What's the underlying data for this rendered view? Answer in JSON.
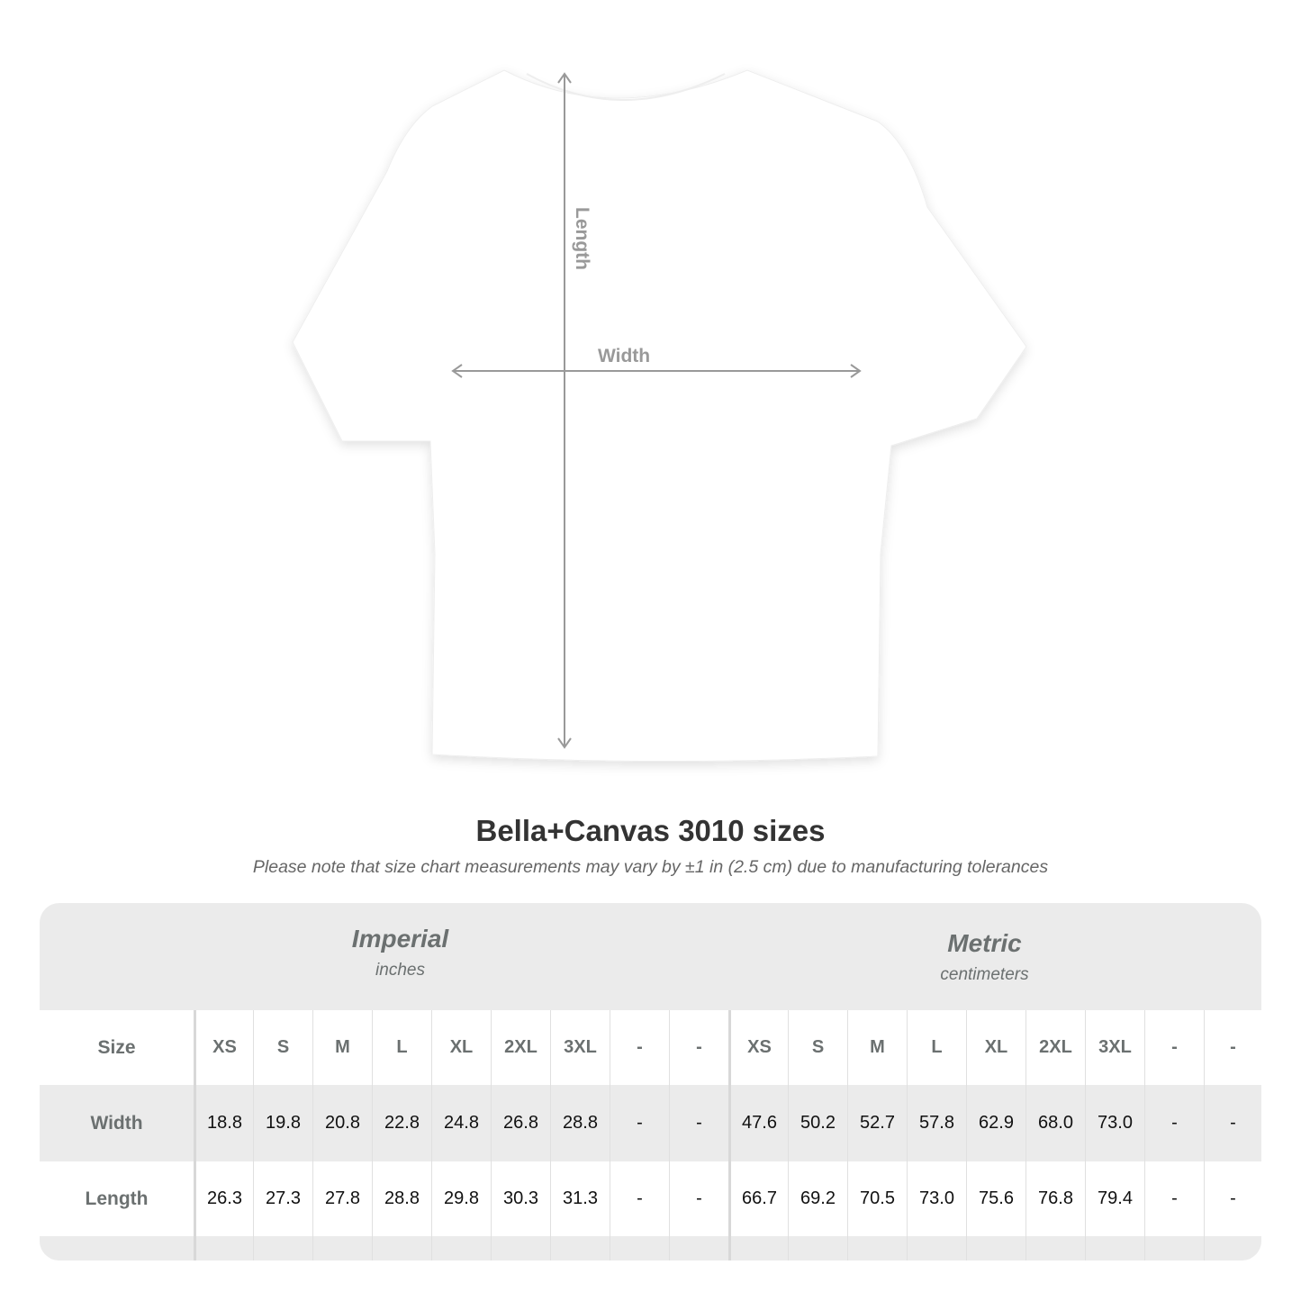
{
  "diagram": {
    "length_label": "Length",
    "width_label": "Width"
  },
  "title": "Bella+Canvas 3010 sizes",
  "subtitle": "Please note that size chart measurements may vary by ±1 in (2.5 cm) due to manufacturing tolerances",
  "table": {
    "imperial": {
      "name": "Imperial",
      "unit": "inches"
    },
    "metric": {
      "name": "Metric",
      "unit": "centimeters"
    },
    "rows": [
      {
        "label": "Size",
        "imperial": [
          "XS",
          "S",
          "M",
          "L",
          "XL",
          "2XL",
          "3XL",
          "-",
          "-"
        ],
        "metric": [
          "XS",
          "S",
          "M",
          "L",
          "XL",
          "2XL",
          "3XL",
          "-",
          "-"
        ]
      },
      {
        "label": "Width",
        "imperial": [
          "18.8",
          "19.8",
          "20.8",
          "22.8",
          "24.8",
          "26.8",
          "28.8",
          "-",
          "-"
        ],
        "metric": [
          "47.6",
          "50.2",
          "52.7",
          "57.8",
          "62.9",
          "68.0",
          "73.0",
          "-",
          "-"
        ]
      },
      {
        "label": "Length",
        "imperial": [
          "26.3",
          "27.3",
          "27.8",
          "28.8",
          "29.8",
          "30.3",
          "31.3",
          "-",
          "-"
        ],
        "metric": [
          "66.7",
          "69.2",
          "70.5",
          "73.0",
          "75.6",
          "76.8",
          "79.4",
          "-",
          "-"
        ]
      }
    ]
  },
  "colors": {
    "header_bg": "#ebebeb",
    "label_text": "#6b7070",
    "arrow": "#999999"
  }
}
